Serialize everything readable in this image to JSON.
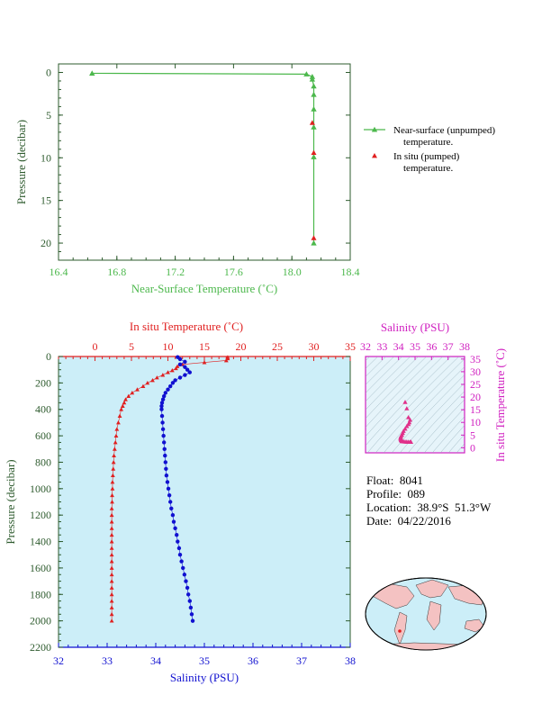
{
  "colors": {
    "green": "#4cb84c",
    "red": "#e02020",
    "blue": "#1010d0",
    "magenta": "#d020c0",
    "axis_dark": "#2e5b2e",
    "panel_bg": "#cceef8",
    "ts_bg": "#e6f4fa",
    "map_ocean": "#cceef8",
    "map_land": "#f4c2c2"
  },
  "info": {
    "float": "Float:  8041",
    "profile": "Profile:  089",
    "location": "Location:  38.9°S  51.3°W",
    "date": "Date:  04/22/2016"
  },
  "chart_data": [
    {
      "type": "line",
      "xlabel": "Near-Surface Temperature (˚C)",
      "ylabel": "Pressure (decibar)",
      "xlim": [
        16.4,
        18.4
      ],
      "ylim": [
        22,
        -1
      ],
      "xticks": [
        "16.4",
        "16.8",
        "17.2",
        "17.6",
        "18.0",
        "18.4"
      ],
      "yticks": [
        "0",
        "5",
        "10",
        "15",
        "20"
      ],
      "legend": [
        {
          "line1": "Near-surface (unpumped)",
          "line2": "temperature."
        },
        {
          "line1": "In situ (pumped)",
          "line2": "temperature."
        }
      ],
      "series": [
        {
          "name": "Near-surface (unpumped) temperature.",
          "marker": "triangle",
          "x": [
            16.63,
            18.1,
            18.14,
            18.14,
            18.15,
            18.15,
            18.15,
            18.15,
            18.15,
            18.15
          ],
          "y": [
            0.1,
            0.2,
            0.5,
            0.8,
            1.6,
            2.6,
            4.3,
            6.4,
            9.9,
            20.0
          ]
        },
        {
          "name": "In situ (pumped) temperature.",
          "marker": "triangle",
          "x": [
            18.14,
            18.15,
            18.15
          ],
          "y": [
            5.9,
            9.4,
            19.4
          ]
        }
      ]
    },
    {
      "type": "line",
      "top_label": "In situ Temperature (˚C)",
      "bottom_label": "Salinity (PSU)",
      "ylabel": "Pressure (decibar)",
      "temp_lim": [
        -5,
        35
      ],
      "sal_lim": [
        32,
        38
      ],
      "ylim": [
        2200,
        0
      ],
      "temp_ticks": [
        "0",
        "5",
        "10",
        "15",
        "20",
        "25",
        "30",
        "35"
      ],
      "sal_ticks": [
        "32",
        "33",
        "34",
        "35",
        "36",
        "37",
        "38"
      ],
      "yticks": [
        "0",
        "200",
        "400",
        "600",
        "800",
        "1000",
        "1200",
        "1400",
        "1600",
        "1800",
        "2000",
        "2200"
      ],
      "series": [
        {
          "name": "In situ Temperature",
          "axis": "top",
          "marker": "triangle",
          "pressure": [
            5,
            15,
            30,
            45,
            60,
            75,
            90,
            105,
            120,
            140,
            160,
            180,
            200,
            225,
            250,
            275,
            300,
            325,
            350,
            375,
            400,
            450,
            500,
            550,
            600,
            650,
            700,
            750,
            800,
            850,
            900,
            950,
            1000,
            1050,
            1100,
            1150,
            1200,
            1250,
            1300,
            1350,
            1400,
            1450,
            1500,
            1550,
            1600,
            1650,
            1700,
            1750,
            1800,
            1850,
            1900,
            1950,
            2000
          ],
          "values": [
            18.2,
            18.2,
            18.0,
            15.0,
            12.0,
            11.3,
            11.1,
            10.6,
            10.0,
            9.3,
            8.5,
            7.9,
            7.2,
            6.6,
            5.8,
            5.1,
            4.6,
            4.2,
            4.0,
            3.8,
            3.6,
            3.4,
            3.2,
            3.0,
            2.9,
            2.8,
            2.7,
            2.6,
            2.55,
            2.5,
            2.45,
            2.4,
            2.4,
            2.35,
            2.35,
            2.3,
            2.3,
            2.3,
            2.3,
            2.3,
            2.3,
            2.3,
            2.3,
            2.3,
            2.3,
            2.3,
            2.3,
            2.3,
            2.3,
            2.3,
            2.3,
            2.3,
            2.3
          ]
        },
        {
          "name": "Salinity",
          "axis": "bottom",
          "marker": "circle",
          "pressure": [
            5,
            20,
            40,
            60,
            80,
            100,
            120,
            140,
            160,
            180,
            200,
            225,
            250,
            275,
            300,
            325,
            350,
            375,
            400,
            450,
            500,
            550,
            600,
            650,
            700,
            750,
            800,
            850,
            900,
            950,
            1000,
            1050,
            1100,
            1150,
            1200,
            1250,
            1300,
            1350,
            1400,
            1450,
            1500,
            1550,
            1600,
            1650,
            1700,
            1750,
            1800,
            1850,
            1900,
            1950,
            2000
          ],
          "values": [
            34.45,
            34.5,
            34.6,
            34.5,
            34.6,
            34.65,
            34.7,
            34.6,
            34.5,
            34.4,
            34.35,
            34.3,
            34.25,
            34.2,
            34.17,
            34.15,
            34.13,
            34.12,
            34.12,
            34.13,
            34.14,
            34.15,
            34.16,
            34.17,
            34.18,
            34.19,
            34.2,
            34.21,
            34.22,
            34.24,
            34.26,
            34.28,
            34.3,
            34.32,
            34.35,
            34.37,
            34.4,
            34.43,
            34.45,
            34.48,
            34.5,
            34.53,
            34.56,
            34.59,
            34.62,
            34.65,
            34.67,
            34.7,
            34.72,
            34.74,
            34.76
          ]
        }
      ]
    },
    {
      "type": "scatter",
      "top_label": "Salinity (PSU)",
      "right_label": "In situ Temperature (˚C)",
      "xlim": [
        32,
        38
      ],
      "ylim": [
        -2,
        36
      ],
      "xticks": [
        "32",
        "33",
        "34",
        "35",
        "36",
        "37",
        "38"
      ],
      "yticks": [
        "0",
        "5",
        "10",
        "15",
        "20",
        "25",
        "30",
        "35"
      ],
      "series": [
        {
          "name": "T-S",
          "marker": "triangle",
          "x": [
            34.4,
            34.5,
            34.6,
            34.7,
            34.65,
            34.6,
            34.5,
            34.4,
            34.3,
            34.25,
            34.2,
            34.15,
            34.13,
            34.12,
            34.13,
            34.15,
            34.18,
            34.2,
            34.25,
            34.3,
            34.4,
            34.5,
            34.6,
            34.7,
            34.75
          ],
          "y": [
            18.0,
            15.5,
            12.0,
            11.0,
            10.0,
            9.3,
            8.5,
            7.5,
            6.6,
            5.8,
            5.1,
            4.6,
            4.2,
            3.8,
            3.4,
            3.0,
            2.8,
            2.6,
            2.5,
            2.45,
            2.4,
            2.35,
            2.3,
            2.3,
            2.3
          ]
        }
      ]
    }
  ]
}
